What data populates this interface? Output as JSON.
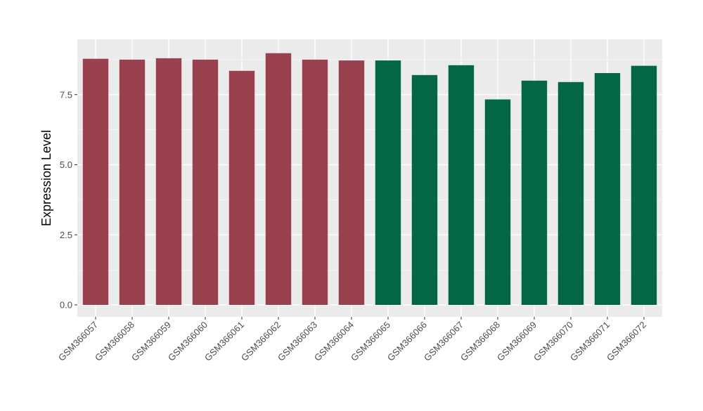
{
  "chart_data": {
    "type": "bar",
    "title": "",
    "xlabel": "",
    "ylabel": "Expression Level",
    "ylim": [
      0,
      9.45
    ],
    "yticks": [
      0.0,
      2.5,
      5.0,
      7.5
    ],
    "ytick_labels": [
      "0.0",
      "2.5",
      "5.0",
      "7.5"
    ],
    "grid": true,
    "legend": "none",
    "categories": [
      "GSM366057",
      "GSM366058",
      "GSM366059",
      "GSM366060",
      "GSM366061",
      "GSM366062",
      "GSM366063",
      "GSM366064",
      "GSM366065",
      "GSM366066",
      "GSM366067",
      "GSM366068",
      "GSM366069",
      "GSM366070",
      "GSM366071",
      "GSM366072"
    ],
    "values": [
      8.78,
      8.75,
      8.8,
      8.75,
      8.35,
      8.98,
      8.75,
      8.72,
      8.72,
      8.2,
      8.55,
      7.33,
      8.0,
      7.95,
      8.27,
      8.53
    ],
    "bar_colors": [
      "#9a414f",
      "#9a414f",
      "#9a414f",
      "#9a414f",
      "#9a414f",
      "#9a414f",
      "#9a414f",
      "#9a414f",
      "#036644",
      "#036644",
      "#036644",
      "#036644",
      "#036644",
      "#036644",
      "#036644",
      "#036644"
    ],
    "panel_background": "#ebebeb",
    "grid_color": "#ffffff"
  }
}
